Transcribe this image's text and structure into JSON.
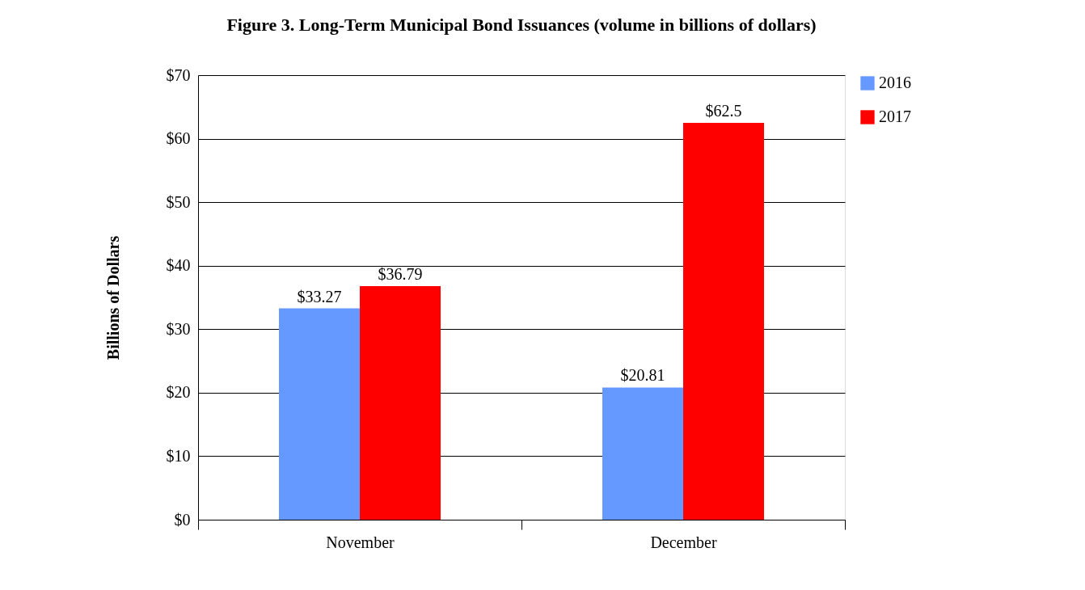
{
  "chart_data": {
    "type": "bar",
    "title": "Figure 3. Long-Term Municipal Bond Issuances (volume in billions of dollars)",
    "ylabel": "Billions of Dollars",
    "categories": [
      "November",
      "December"
    ],
    "series": [
      {
        "name": "2016",
        "color": "#6699ff",
        "values": [
          33.27,
          20.81
        ],
        "value_labels": [
          "$33.27",
          "$20.81"
        ]
      },
      {
        "name": "2017",
        "color": "#ff0000",
        "values": [
          36.79,
          62.5
        ],
        "value_labels": [
          "$36.79",
          "$62.5"
        ]
      }
    ],
    "ylim": [
      0,
      70
    ],
    "yticks": [
      {
        "value": 0,
        "label": "$0"
      },
      {
        "value": 10,
        "label": "$10"
      },
      {
        "value": 20,
        "label": "$20"
      },
      {
        "value": 30,
        "label": "$30"
      },
      {
        "value": 40,
        "label": "$40"
      },
      {
        "value": 50,
        "label": "$50"
      },
      {
        "value": 60,
        "label": "$60"
      },
      {
        "value": 70,
        "label": "$70"
      }
    ],
    "grid": "y",
    "legend": "right"
  }
}
